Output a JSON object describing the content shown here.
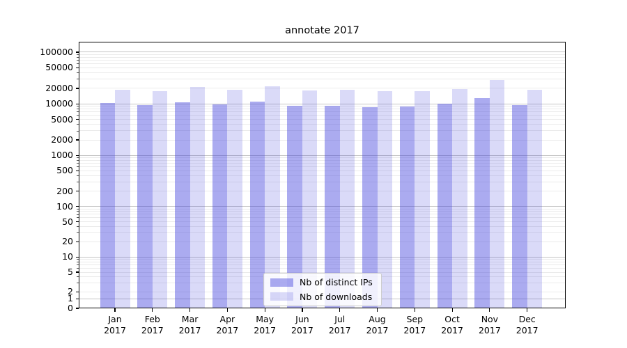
{
  "chart_data": {
    "type": "bar",
    "title": "annotate 2017",
    "categories": [
      "Jan 2017",
      "Feb 2017",
      "Mar 2017",
      "Apr 2017",
      "May 2017",
      "Jun 2017",
      "Jul 2017",
      "Aug 2017",
      "Sep 2017",
      "Oct 2017",
      "Nov 2017",
      "Dec 2017"
    ],
    "series": [
      {
        "name": "Nb of distinct IPs",
        "color": "#4444dd",
        "alpha": 0.45,
        "values": [
          10400,
          9400,
          10700,
          9900,
          11000,
          9300,
          9100,
          8700,
          8800,
          10200,
          12900,
          9500
        ]
      },
      {
        "name": "Nb of downloads",
        "color": "#4444dd",
        "alpha": 0.2,
        "values": [
          18700,
          17500,
          21300,
          18800,
          21600,
          18200,
          18900,
          17400,
          17700,
          19600,
          28800,
          18600
        ]
      }
    ],
    "xlabel": "",
    "ylabel": "",
    "yscale": "symlog",
    "yticks": [
      0,
      1,
      2,
      5,
      10,
      20,
      50,
      100,
      200,
      500,
      1000,
      2000,
      5000,
      10000,
      20000,
      50000,
      100000
    ],
    "ylim": [
      0,
      165000
    ],
    "grid": "horizontal, major and minor (log)",
    "legend_position": "lower center"
  }
}
